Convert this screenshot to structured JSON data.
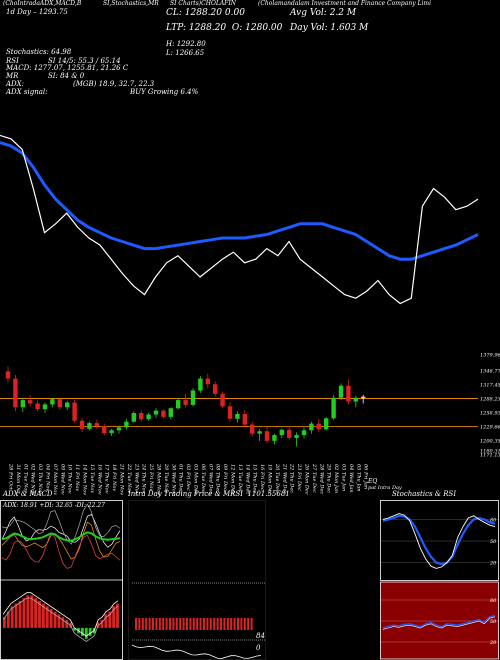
{
  "header": {
    "line1_left": "Cholamandalam Investment and Finance Company Limited",
    "tabs_line": [
      "(ChoIntrada",
      "ADX,MACD,B",
      "SI,Stochastics,MR",
      "SI Charts)",
      "CHOLAFIN"
    ],
    "company": "(Cholamandalam Investment and Finance Company Limi",
    "day_range_label": "1d Day",
    "day_range_value": "1293.75",
    "cl_label": "CL:",
    "cl_value": "1288.20",
    "cl_change": "0.00",
    "ltp_label": "LTP:",
    "ltp_value": "1288.20",
    "open_label": "O:",
    "open_value": "1280.00",
    "avg_vol_label": "Avg Vol:",
    "avg_vol_value": "2.2 M",
    "day_vol_label": "Day Vol:",
    "day_vol_value": "1.603 M",
    "high_label": "H:",
    "high_value": "1292.80",
    "low_label": "L:",
    "low_value": "1266.65",
    "stochastics": "Stochastics: 64.98",
    "si": "SI 14/5: 55.3 / 65.14",
    "macd": "MACD: 1277.07,  1255.81,  21.26  C",
    "rsi_label": "RSI",
    "rsi_si": "SI: 84  & 0",
    "adx_label": "ADX:",
    "adx_value": "(MGB) 18.9,  32.7,  22.3",
    "signal_label": "ADX  signal:",
    "signal_value": "BUY Growing 6.4%"
  },
  "colors": {
    "background": "#000000",
    "price_line": "#ffffff",
    "ma_line": "#1e5bff",
    "bull_candle": "#22cc22",
    "bear_candle": "#dd2222",
    "level_line": "#ff9900",
    "panel_border": "#ffffff",
    "rsi_panel_bg": "#8a0000",
    "rsi_line": "#1e5bff"
  },
  "chart_data": [
    {
      "type": "line",
      "id": "intraday-price",
      "series": [
        {
          "values": [
            1240,
            1238,
            1232,
            1210,
            1185,
            1190,
            1196,
            1188,
            1182,
            1178,
            1170,
            1162,
            1155,
            1150,
            1160,
            1168,
            1172,
            1166,
            1160,
            1165,
            1170,
            1174,
            1168,
            1170,
            1176,
            1172,
            1180,
            1170,
            1165,
            1160,
            1155,
            1150,
            1148,
            1152,
            1158,
            1150,
            1145,
            1148,
            1200,
            1210,
            1205,
            1198,
            1200,
            1204
          ]
        },
        {
          "values": [
            1236,
            1234,
            1230,
            1222,
            1212,
            1204,
            1198,
            1192,
            1188,
            1185,
            1182,
            1180,
            1178,
            1176,
            1176,
            1177,
            1178,
            1179,
            1180,
            1181,
            1182,
            1182,
            1182,
            1183,
            1184,
            1186,
            1188,
            1190,
            1190,
            1190,
            1188,
            1186,
            1184,
            1180,
            1176,
            1172,
            1170,
            1170,
            1172,
            1174,
            1176,
            1178,
            1181,
            1184
          ]
        }
      ],
      "ylim": [
        1130,
        1260
      ]
    },
    {
      "type": "bar",
      "id": "daily-candles",
      "y_ticks": [
        "1379.96",
        "1346.77",
        "1317.45",
        "1288.23",
        "1258.93",
        "1229.66",
        "1200.35",
        "1180.31",
        "1171.13"
      ],
      "categories": [
        "28 Fri Oct",
        "31 Mon Oct",
        "01 Tue Nov",
        "02 Wed Nov",
        "03 Thu Nov",
        "04 Fri Nov",
        "07 Mon Nov",
        "09 Wed Nov",
        "10 Thu Nov",
        "11 Fri Nov",
        "14 Mon Nov",
        "15 Tue Nov",
        "16 Wed Nov",
        "17 Thu Nov",
        "18 Fri Nov",
        "21 Mon Nov",
        "22 Tue Nov",
        "23 Wed Nov",
        "24 Thu Nov",
        "25 Fri Nov",
        "28 Mon Nov",
        "29 Tue Nov",
        "30 Wed Nov",
        "01 Thu Dec",
        "02 Fri Dec",
        "05 Mon Dec",
        "06 Tue Dec",
        "07 Wed Dec",
        "08 Thu Dec",
        "09 Fri Dec",
        "12 Mon Dec",
        "13 Tue Dec",
        "14 Wed Dec",
        "15 Thu Dec",
        "16 Fri Dec",
        "19 Mon Dec",
        "20 Tue Dec",
        "21 Wed Dec",
        "22 Thu Dec",
        "23 Fri Dec",
        "26 Mon Dec",
        "27 Tue Dec",
        "28 Wed Dec",
        "29 Thu Dec",
        "02 Mon Jan",
        "03 Tue Jan",
        "04 Wed Jan",
        "05 Thu Jan",
        "06 Fri Jan"
      ],
      "candles": [
        [
          1345,
          1355,
          1322,
          1330
        ],
        [
          1330,
          1338,
          1262,
          1270
        ],
        [
          1270,
          1290,
          1260,
          1285
        ],
        [
          1285,
          1295,
          1272,
          1278
        ],
        [
          1278,
          1284,
          1262,
          1266
        ],
        [
          1266,
          1280,
          1258,
          1276
        ],
        [
          1276,
          1290,
          1270,
          1287
        ],
        [
          1287,
          1290,
          1265,
          1270
        ],
        [
          1270,
          1284,
          1264,
          1280
        ],
        [
          1280,
          1285,
          1238,
          1242
        ],
        [
          1242,
          1248,
          1218,
          1225
        ],
        [
          1225,
          1240,
          1222,
          1237
        ],
        [
          1237,
          1244,
          1225,
          1230
        ],
        [
          1230,
          1236,
          1212,
          1216
        ],
        [
          1216,
          1225,
          1210,
          1222
        ],
        [
          1222,
          1232,
          1215,
          1228
        ],
        [
          1228,
          1246,
          1224,
          1240
        ],
        [
          1240,
          1262,
          1238,
          1258
        ],
        [
          1258,
          1264,
          1240,
          1245
        ],
        [
          1245,
          1258,
          1242,
          1255
        ],
        [
          1255,
          1268,
          1248,
          1263
        ],
        [
          1263,
          1266,
          1246,
          1250
        ],
        [
          1250,
          1270,
          1245,
          1268
        ],
        [
          1268,
          1290,
          1266,
          1285
        ],
        [
          1285,
          1298,
          1270,
          1275
        ],
        [
          1275,
          1310,
          1272,
          1305
        ],
        [
          1305,
          1335,
          1300,
          1330
        ],
        [
          1330,
          1340,
          1310,
          1318
        ],
        [
          1318,
          1324,
          1292,
          1298
        ],
        [
          1298,
          1303,
          1268,
          1272
        ],
        [
          1272,
          1280,
          1240,
          1246
        ],
        [
          1246,
          1262,
          1238,
          1256
        ],
        [
          1256,
          1264,
          1230,
          1234
        ],
        [
          1234,
          1240,
          1210,
          1215
        ],
        [
          1215,
          1225,
          1200,
          1220
        ],
        [
          1220,
          1230,
          1195,
          1200
        ],
        [
          1200,
          1215,
          1192,
          1212
        ],
        [
          1212,
          1226,
          1206,
          1223
        ],
        [
          1223,
          1230,
          1202,
          1206
        ],
        [
          1206,
          1218,
          1188,
          1212
        ],
        [
          1212,
          1228,
          1205,
          1222
        ],
        [
          1222,
          1240,
          1215,
          1236
        ],
        [
          1236,
          1246,
          1218,
          1224
        ],
        [
          1224,
          1250,
          1222,
          1247
        ],
        [
          1247,
          1296,
          1244,
          1290
        ],
        [
          1290,
          1320,
          1285,
          1315
        ],
        [
          1315,
          1328,
          1276,
          1282
        ],
        [
          1282,
          1294,
          1270,
          1290
        ],
        [
          1290,
          1296,
          1278,
          1292
        ]
      ],
      "ylim": [
        1160,
        1400
      ]
    },
    {
      "type": "line",
      "id": "adx-macd",
      "title": "ADX  & MACD",
      "series": [
        {
          "name": "ADX",
          "values": [
            18,
            20,
            25,
            30,
            28,
            24,
            20,
            18,
            19,
            20,
            22,
            26,
            30,
            28,
            22,
            18,
            16,
            15,
            18,
            22,
            28,
            32,
            30,
            24,
            20,
            18,
            17,
            18,
            19,
            20
          ]
        }
      ],
      "ylim": [
        0,
        40
      ]
    },
    {
      "type": "bar",
      "id": "macd-histogram",
      "values": [
        4,
        6,
        8,
        9,
        10,
        11,
        12,
        12,
        11,
        10,
        9,
        8,
        7,
        6,
        5,
        4,
        3,
        2,
        -1,
        -2,
        -3,
        -4,
        -3,
        -2,
        2,
        3,
        5,
        6,
        8,
        9
      ],
      "ylim": [
        -10,
        14
      ]
    },
    {
      "type": "bar",
      "id": "intraday-mrsi",
      "title": "Intra  Day Trading Price  & MRSI",
      "values": [
        1101.55,
        1101.55,
        1101.55,
        1101.55,
        1101.55,
        1101.55,
        1101.55,
        1101.55,
        1101.55,
        1101.55,
        1101.55,
        1101.55,
        1101.55,
        1101.55,
        1101.55,
        1101.55,
        1101.55,
        1101.55,
        1101.55,
        1101.55,
        1101.55,
        1101.55,
        1101.55,
        1101.55,
        1101.55,
        1101.55,
        1101.55,
        1101.55,
        1101.55,
        1101.55,
        1101.55,
        1101.55,
        1101.55,
        1101.55,
        1101.55
      ],
      "annotation": "1101.55681"
    },
    {
      "type": "line",
      "id": "stochastics",
      "title": "Stochastics  & RSI",
      "y_ticks": [
        "80",
        "50",
        "20"
      ],
      "series": [
        {
          "name": "K",
          "values": [
            80,
            82,
            85,
            88,
            86,
            78,
            60,
            40,
            25,
            15,
            12,
            14,
            20,
            30,
            55,
            70,
            82,
            85,
            80,
            76,
            72,
            70
          ]
        },
        {
          "name": "D",
          "values": [
            78,
            80,
            82,
            85,
            84,
            80,
            70,
            55,
            40,
            28,
            20,
            18,
            20,
            28,
            45,
            60,
            72,
            80,
            82,
            80,
            76,
            74
          ]
        }
      ],
      "ylim": [
        0,
        100
      ]
    },
    {
      "type": "line",
      "id": "rsi",
      "y_ticks": [
        "80",
        "50",
        "20"
      ],
      "series": [
        {
          "name": "RSI",
          "values": [
            40,
            42,
            44,
            43,
            45,
            46,
            44,
            42,
            46,
            48,
            44,
            42,
            46,
            45,
            44,
            46,
            48,
            50,
            52,
            48,
            56,
            58
          ]
        }
      ],
      "ylim": [
        0,
        100
      ]
    }
  ],
  "labels": {
    "adx_panel_value": "ADX: 18.91 +DI: 32.65 -DI: 22.27",
    "mrsi_values": "84",
    "mrsi_zero": "0",
    "stoch_k_tag": "64.98",
    "si_label": "SI",
    "rsi_tag": "55.3",
    "candle_tag1": "EQ",
    "candle_tag2": "pat Intra Day"
  }
}
